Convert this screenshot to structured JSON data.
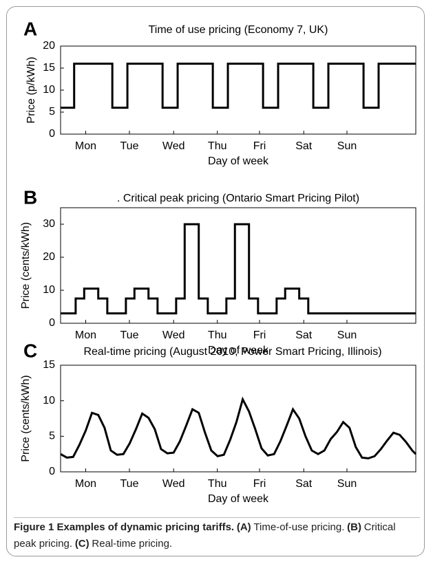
{
  "chart_data": [
    {
      "type": "line",
      "panel_label": "A",
      "title": "Time of use pricing (Economy 7, UK)",
      "x_label": "Day of week",
      "y_label": "Price (p/kWh)",
      "color": "#000000",
      "x": [
        0,
        0.27,
        0.27,
        1.03,
        1.03,
        1.33,
        1.33,
        2.03,
        2.03,
        2.33,
        2.33,
        3.03,
        3.03,
        3.33,
        3.33,
        4.03,
        4.03,
        4.33,
        4.33,
        5.03,
        5.03,
        5.33,
        5.33,
        6.03,
        6.03,
        6.33,
        6.33,
        7.07
      ],
      "values": [
        6,
        6,
        16,
        16,
        6,
        6,
        16,
        16,
        6,
        6,
        16,
        16,
        6,
        6,
        16,
        16,
        6,
        6,
        16,
        16,
        6,
        6,
        16,
        16,
        6,
        6,
        16,
        16
      ],
      "xlim": [
        0,
        7.07
      ],
      "xticks": [
        {
          "value": 0.5,
          "label": "Mon"
        },
        {
          "value": 1.37,
          "label": "Tue"
        },
        {
          "value": 2.25,
          "label": "Wed"
        },
        {
          "value": 3.12,
          "label": "Thu"
        },
        {
          "value": 3.96,
          "label": "Fri"
        },
        {
          "value": 4.84,
          "label": "Sat"
        },
        {
          "value": 5.7,
          "label": "Sun"
        }
      ],
      "ylim": [
        0,
        20
      ],
      "yticks": [
        0,
        5,
        10,
        15,
        20
      ]
    },
    {
      "type": "line",
      "panel_label": "B",
      "title": ". Critical peak pricing (Ontario Smart Pricing Pilot)",
      "x_label": "Day of week",
      "y_label": "Price (cents/kWh)",
      "color": "#000000",
      "x": [
        0,
        0.3,
        0.3,
        0.47,
        0.47,
        0.75,
        0.75,
        0.93,
        0.93,
        1.3,
        1.3,
        1.47,
        1.47,
        1.75,
        1.75,
        1.93,
        1.93,
        2.3,
        2.3,
        2.47,
        2.47,
        2.75,
        2.75,
        2.93,
        2.93,
        3.3,
        3.3,
        3.47,
        3.47,
        3.75,
        3.75,
        3.93,
        3.93,
        4.3,
        4.3,
        4.47,
        4.47,
        4.75,
        4.75,
        4.93,
        4.93,
        7.07
      ],
      "values": [
        3,
        3,
        7.5,
        7.5,
        10.5,
        10.5,
        7.5,
        7.5,
        3,
        3,
        7.5,
        7.5,
        10.5,
        10.5,
        7.5,
        7.5,
        3,
        3,
        7.5,
        7.5,
        30,
        30,
        7.5,
        7.5,
        3,
        3,
        7.5,
        7.5,
        30,
        30,
        7.5,
        7.5,
        3,
        3,
        7.5,
        7.5,
        10.5,
        10.5,
        7.5,
        7.5,
        3,
        3
      ],
      "xlim": [
        0,
        7.07
      ],
      "xticks": [
        {
          "value": 0.5,
          "label": "Mon"
        },
        {
          "value": 1.37,
          "label": "Tue"
        },
        {
          "value": 2.25,
          "label": "Wed"
        },
        {
          "value": 3.12,
          "label": "Thu"
        },
        {
          "value": 3.96,
          "label": "Fri"
        },
        {
          "value": 4.84,
          "label": "Sat"
        },
        {
          "value": 5.7,
          "label": "Sun"
        }
      ],
      "ylim": [
        0,
        35
      ],
      "yticks": [
        0,
        10,
        20,
        30
      ]
    },
    {
      "type": "line",
      "panel_label": "C",
      "title": "Real-time pricing (August 2010, Power Smart Pricing, Illinois)",
      "x_label": "Day of week",
      "y_label": "Price (cents/kWh)",
      "color": "#000000",
      "x": [
        0,
        0.125,
        0.25,
        0.375,
        0.5,
        0.625,
        0.75,
        0.875,
        1,
        1.125,
        1.25,
        1.375,
        1.5,
        1.625,
        1.75,
        1.875,
        2,
        2.125,
        2.25,
        2.375,
        2.5,
        2.625,
        2.75,
        2.875,
        3,
        3.125,
        3.25,
        3.375,
        3.5,
        3.625,
        3.75,
        3.875,
        4,
        4.125,
        4.25,
        4.375,
        4.5,
        4.625,
        4.75,
        4.875,
        5,
        5.125,
        5.25,
        5.375,
        5.5,
        5.625,
        5.75,
        5.875,
        6,
        6.125,
        6.25,
        6.375,
        6.5,
        6.625,
        6.75,
        6.875,
        7,
        7.07
      ],
      "values": [
        2.5,
        2.0,
        2.1,
        3.8,
        5.8,
        8.3,
        8.0,
        6.2,
        3.0,
        2.4,
        2.5,
        4.0,
        6.0,
        8.2,
        7.6,
        6.0,
        3.2,
        2.6,
        2.7,
        4.3,
        6.5,
        8.8,
        8.3,
        5.5,
        3.0,
        2.2,
        2.4,
        4.5,
        7.0,
        10.2,
        8.5,
        6.0,
        3.3,
        2.3,
        2.5,
        4.3,
        6.5,
        8.8,
        7.5,
        5.0,
        3.0,
        2.5,
        3.0,
        4.6,
        5.6,
        7.0,
        6.2,
        3.5,
        2.0,
        1.9,
        2.2,
        3.2,
        4.4,
        5.5,
        5.2,
        4.2,
        3.0,
        2.5
      ],
      "xlim": [
        0,
        7.07
      ],
      "xticks": [
        {
          "value": 0.5,
          "label": "Mon"
        },
        {
          "value": 1.37,
          "label": "Tue"
        },
        {
          "value": 2.25,
          "label": "Wed"
        },
        {
          "value": 3.12,
          "label": "Thu"
        },
        {
          "value": 3.96,
          "label": "Fri"
        },
        {
          "value": 4.84,
          "label": "Sat"
        },
        {
          "value": 5.7,
          "label": "Sun"
        }
      ],
      "ylim": [
        0,
        15
      ],
      "yticks": [
        0,
        5,
        10,
        15
      ]
    }
  ],
  "caption": [
    {
      "text": "Figure 1 Examples of dynamic pricing tariffs.",
      "bold": true
    },
    {
      "text": "(A)",
      "bold": true
    },
    {
      "text": "Time-of-use pricing.",
      "bold": false
    },
    {
      "text": "(B)",
      "bold": true
    },
    {
      "text": "Critical peak pricing.",
      "bold": false
    },
    {
      "text": "(C)",
      "bold": true
    },
    {
      "text": "Real-time pricing.",
      "bold": false
    }
  ]
}
